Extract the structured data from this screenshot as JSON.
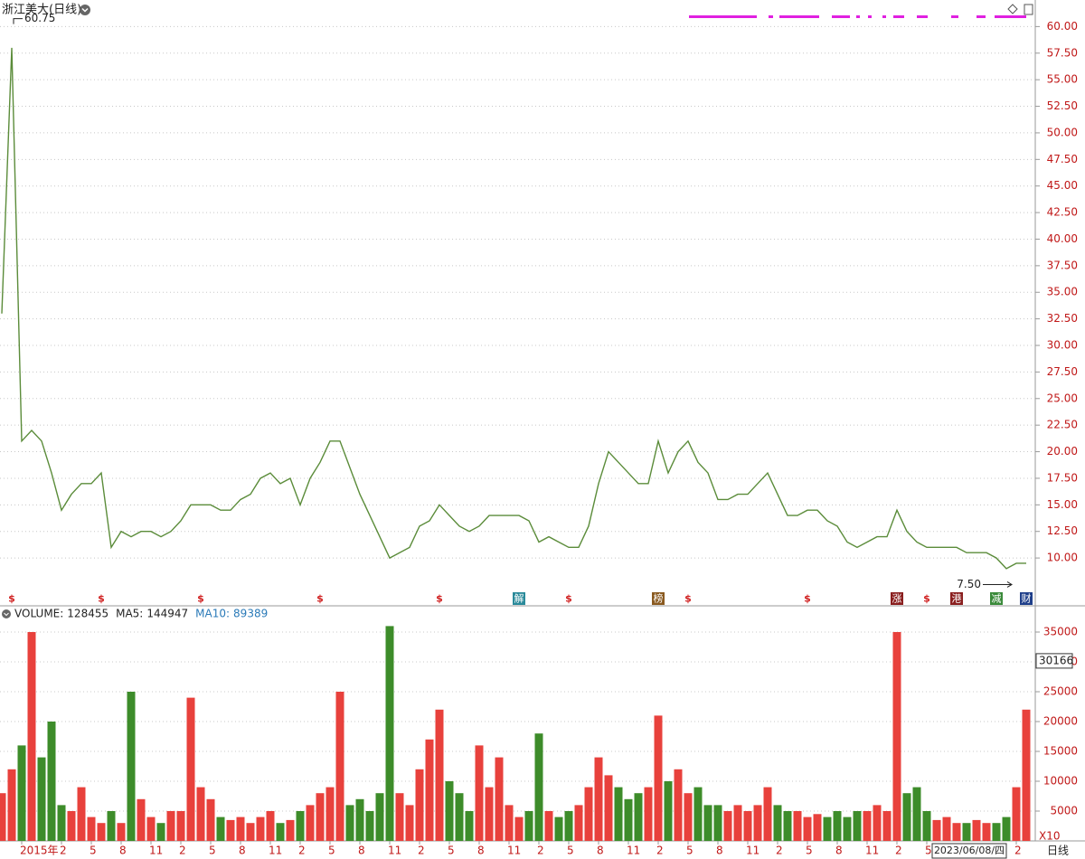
{
  "chart_data": [
    {
      "type": "line",
      "title": "浙江美大(日线)",
      "color": "#5b8c3a",
      "categories": [
        null,
        null,
        "2015年",
        null,
        null,
        null,
        "2",
        null,
        null,
        "5",
        null,
        null,
        "8",
        null,
        null,
        "11",
        null,
        null,
        "2",
        null,
        null,
        "5",
        null,
        null,
        "8",
        null,
        null,
        "11",
        null,
        null,
        "2",
        null,
        null,
        "5",
        null,
        null,
        "8",
        null,
        null,
        "11",
        null,
        null,
        "2",
        null,
        null,
        "5",
        null,
        null,
        "8",
        null,
        null,
        "11",
        null,
        null,
        "2",
        null,
        null,
        "5",
        null,
        null,
        "8",
        null,
        null,
        "11",
        null,
        null,
        "2",
        null,
        null,
        "5",
        null,
        null,
        "8",
        null,
        null,
        "11",
        null,
        null,
        "2",
        null,
        null,
        "5",
        null,
        null,
        "8",
        null,
        null,
        "11",
        null,
        null,
        "2",
        null,
        null,
        "5",
        null,
        null,
        null,
        null,
        null,
        null,
        null,
        null,
        "2",
        null
      ],
      "values": [
        33,
        58,
        21,
        22,
        21,
        18,
        14.5,
        16,
        17,
        17,
        18,
        11,
        12.5,
        12,
        12.5,
        12.5,
        12,
        12.5,
        13.5,
        15,
        15,
        15,
        14.5,
        14.5,
        15.5,
        16,
        17.5,
        18,
        17,
        17.5,
        15,
        17.5,
        19,
        21,
        21,
        18.5,
        16,
        14,
        12,
        10,
        10.5,
        11,
        13,
        13.5,
        15,
        14,
        13,
        12.5,
        13,
        14,
        14,
        14,
        14,
        13.5,
        11.5,
        12,
        11.5,
        11,
        11,
        13,
        17,
        20,
        19,
        18,
        17,
        17,
        21,
        18,
        20,
        21,
        19,
        18,
        15.5,
        15.5,
        16,
        16,
        17,
        18,
        16,
        14,
        14,
        14.5,
        14.5,
        13.5,
        13,
        11.5,
        11,
        11.5,
        12,
        12,
        14.5,
        12.5,
        11.5,
        11,
        11,
        11,
        11,
        10.5,
        10.5,
        10.5,
        10,
        9,
        9.5,
        9.5
      ],
      "events": [
        null,
        "$",
        null,
        null,
        null,
        null,
        null,
        null,
        null,
        null,
        "$",
        null,
        null,
        null,
        null,
        null,
        null,
        null,
        null,
        null,
        "$",
        null,
        null,
        null,
        null,
        null,
        null,
        null,
        null,
        null,
        null,
        null,
        "$",
        null,
        null,
        null,
        null,
        null,
        null,
        null,
        null,
        null,
        null,
        null,
        "$",
        null,
        null,
        null,
        null,
        null,
        null,
        null,
        "解",
        null,
        null,
        null,
        null,
        "$",
        null,
        null,
        null,
        null,
        null,
        null,
        null,
        null,
        "榜",
        null,
        null,
        "$",
        null,
        null,
        null,
        null,
        null,
        null,
        null,
        null,
        null,
        null,
        null,
        "$",
        null,
        null,
        null,
        null,
        null,
        null,
        null,
        null,
        "涨",
        null,
        null,
        "$",
        null,
        null,
        "港",
        null,
        null,
        null,
        "减",
        null,
        null,
        "财"
      ],
      "event_box_colors": {
        "解": "#2a8a9a",
        "榜": "#8a5a20",
        "涨": "#8a1f1f",
        "港": "#8a1f1f",
        "减": "#3a8a3a",
        "财": "#1f3f8a"
      },
      "event_color": "#d02020",
      "annotations": [
        60.75,
        {
          "value": 7.5,
          "label": "7.50"
        }
      ],
      "ylim": [
        5.5,
        62.5
      ],
      "yticks": [
        {
          "value": 10,
          "label": "10.00"
        },
        {
          "value": 12.5,
          "label": "12.50"
        },
        {
          "value": 15,
          "label": "15.00"
        },
        {
          "value": 17.5,
          "label": "17.50"
        },
        {
          "value": 20,
          "label": "20.00"
        },
        {
          "value": 22.5,
          "label": "22.50"
        },
        {
          "value": 25,
          "label": "25.00"
        },
        {
          "value": 27.5,
          "label": "27.50"
        },
        {
          "value": 30,
          "label": "30.00"
        },
        {
          "value": 32.5,
          "label": "32.50"
        },
        {
          "value": 35,
          "label": "35.00"
        },
        {
          "value": 37.5,
          "label": "37.50"
        },
        {
          "value": 40,
          "label": "40.00"
        },
        {
          "value": 42.5,
          "label": "42.50"
        },
        {
          "value": 45,
          "label": "45.00"
        },
        {
          "value": 47.5,
          "label": "47.50"
        },
        {
          "value": 50,
          "label": "50.00"
        },
        {
          "value": 52.5,
          "label": "52.50"
        },
        {
          "value": 55,
          "label": "55.00"
        },
        {
          "value": 57.5,
          "label": "57.50"
        },
        {
          "value": 60,
          "label": "60.00"
        }
      ],
      "grid": true
    },
    {
      "type": "bar",
      "legend": [
        {
          "name": "VOLUME:",
          "value": 128455
        },
        {
          "name": "MA5:",
          "value": 144947
        },
        {
          "name": "MA10:",
          "value": 89389,
          "color": "#2a7ab8"
        }
      ],
      "values": [
        8000,
        12000,
        16000,
        35000,
        14000,
        20000,
        6000,
        5000,
        9000,
        4000,
        3000,
        5000,
        3000,
        25000,
        7000,
        4000,
        3000,
        5000,
        5000,
        24000,
        9000,
        7000,
        4000,
        3500,
        4000,
        3000,
        4000,
        5000,
        3000,
        3500,
        5000,
        6000,
        8000,
        9000,
        25000,
        6000,
        7000,
        5000,
        8000,
        36000,
        8000,
        6000,
        12000,
        17000,
        22000,
        10000,
        8000,
        5000,
        16000,
        9000,
        14000,
        6000,
        4000,
        5000,
        18000,
        5000,
        4000,
        5000,
        6000,
        9000,
        14000,
        11000,
        9000,
        7000,
        8000,
        9000,
        21000,
        10000,
        12000,
        8000,
        9000,
        6000,
        6000,
        5000,
        6000,
        5000,
        6000,
        9000,
        6000,
        5000,
        5000,
        4000,
        4500,
        4000,
        5000,
        4000,
        5000,
        5000,
        6000,
        5000,
        35000,
        8000,
        9000,
        5000,
        3500,
        4000,
        3000,
        3000,
        3500,
        3000,
        3000,
        4000,
        9000,
        22000
      ],
      "up_color": "#e8413c",
      "down_color": "#3d8c2a",
      "ylim": [
        0,
        36667
      ],
      "yticks": [
        5000,
        10000,
        15000,
        20000,
        25000,
        30000,
        35000
      ],
      "grid": true,
      "cursor_value": 30166,
      "unit": "X10",
      "cursor_date": "2023/06/08/四",
      "period_label": "日线"
    }
  ]
}
